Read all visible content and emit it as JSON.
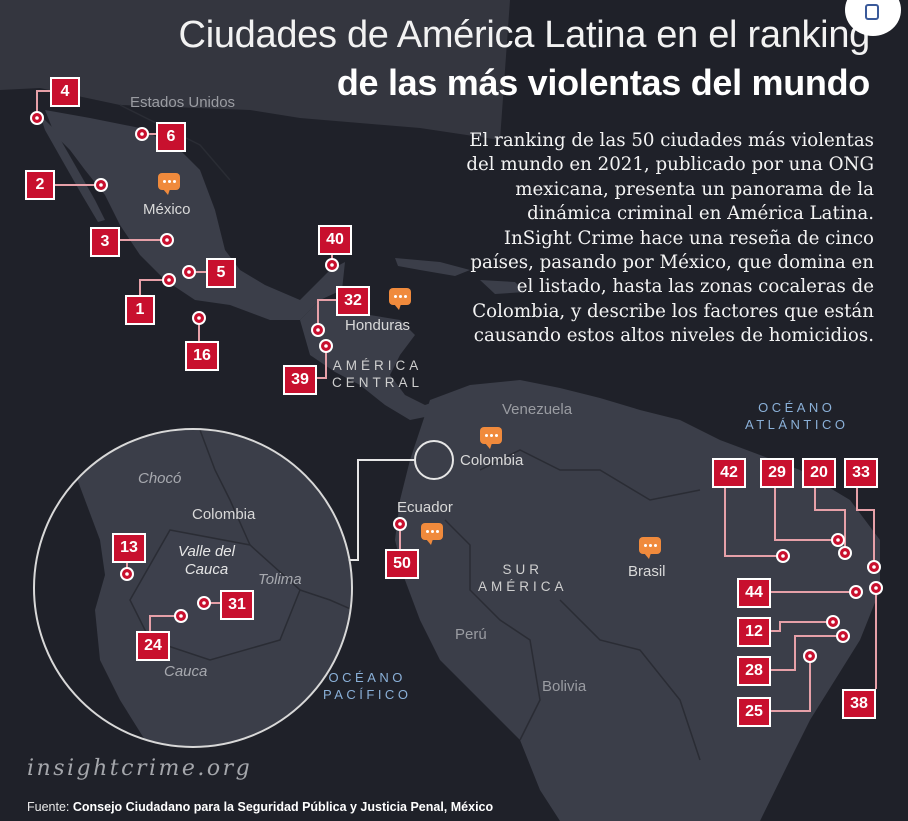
{
  "title": {
    "line1": "Ciudades de América Latina en el ranking",
    "line2": "de las más violentas del mundo"
  },
  "description": "El ranking de las 50 ciudades más violentas del mundo en 2021, publicado por una ONG mexicana, presenta un panorama de la dinámica criminal en América Latina. InSight Crime hace una reseña de cinco países, pasando por México, que domina en el listado, hasta las zonas cocaleras de Colombia, y describe los factores que están causando estos altos niveles de homicidios.",
  "labels": {
    "usa": "Estados Unidos",
    "mexico": "México",
    "honduras": "Honduras",
    "central_america": "AMÉRICA\nCENTRAL",
    "venezuela": "Venezuela",
    "colombia": "Colombia",
    "ecuador": "Ecuador",
    "brasil": "Brasil",
    "south_america": "SUR\nAMÉRICA",
    "peru": "Perú",
    "bolivia": "Bolivia",
    "atlantic": "OCÉANO\nATLÁNTICO",
    "pacific": "OCÉANO\nPACÍFICO"
  },
  "inset": {
    "choco": "Chocó",
    "colombia": "Colombia",
    "valle": "Valle del\nCauca",
    "tolima": "Tolima",
    "cauca": "Cauca"
  },
  "rankings": [
    "4",
    "6",
    "2",
    "3",
    "5",
    "1",
    "16",
    "40",
    "32",
    "39",
    "50",
    "13",
    "31",
    "24",
    "42",
    "29",
    "20",
    "33",
    "44",
    "12",
    "28",
    "25",
    "38"
  ],
  "watermark": "insightcrime.org",
  "source": {
    "prefix": "Fuente:",
    "text": "Consejo Ciudadano para la Seguridad Pública y Justicia Penal, México"
  },
  "colors": {
    "background": "#1f2129",
    "land": "#3b3e49",
    "marker": "#c8102e",
    "bubble": "#f08a3c"
  },
  "icons": [
    "country-bubble-icon",
    "city-marker-icon",
    "open-icon"
  ]
}
